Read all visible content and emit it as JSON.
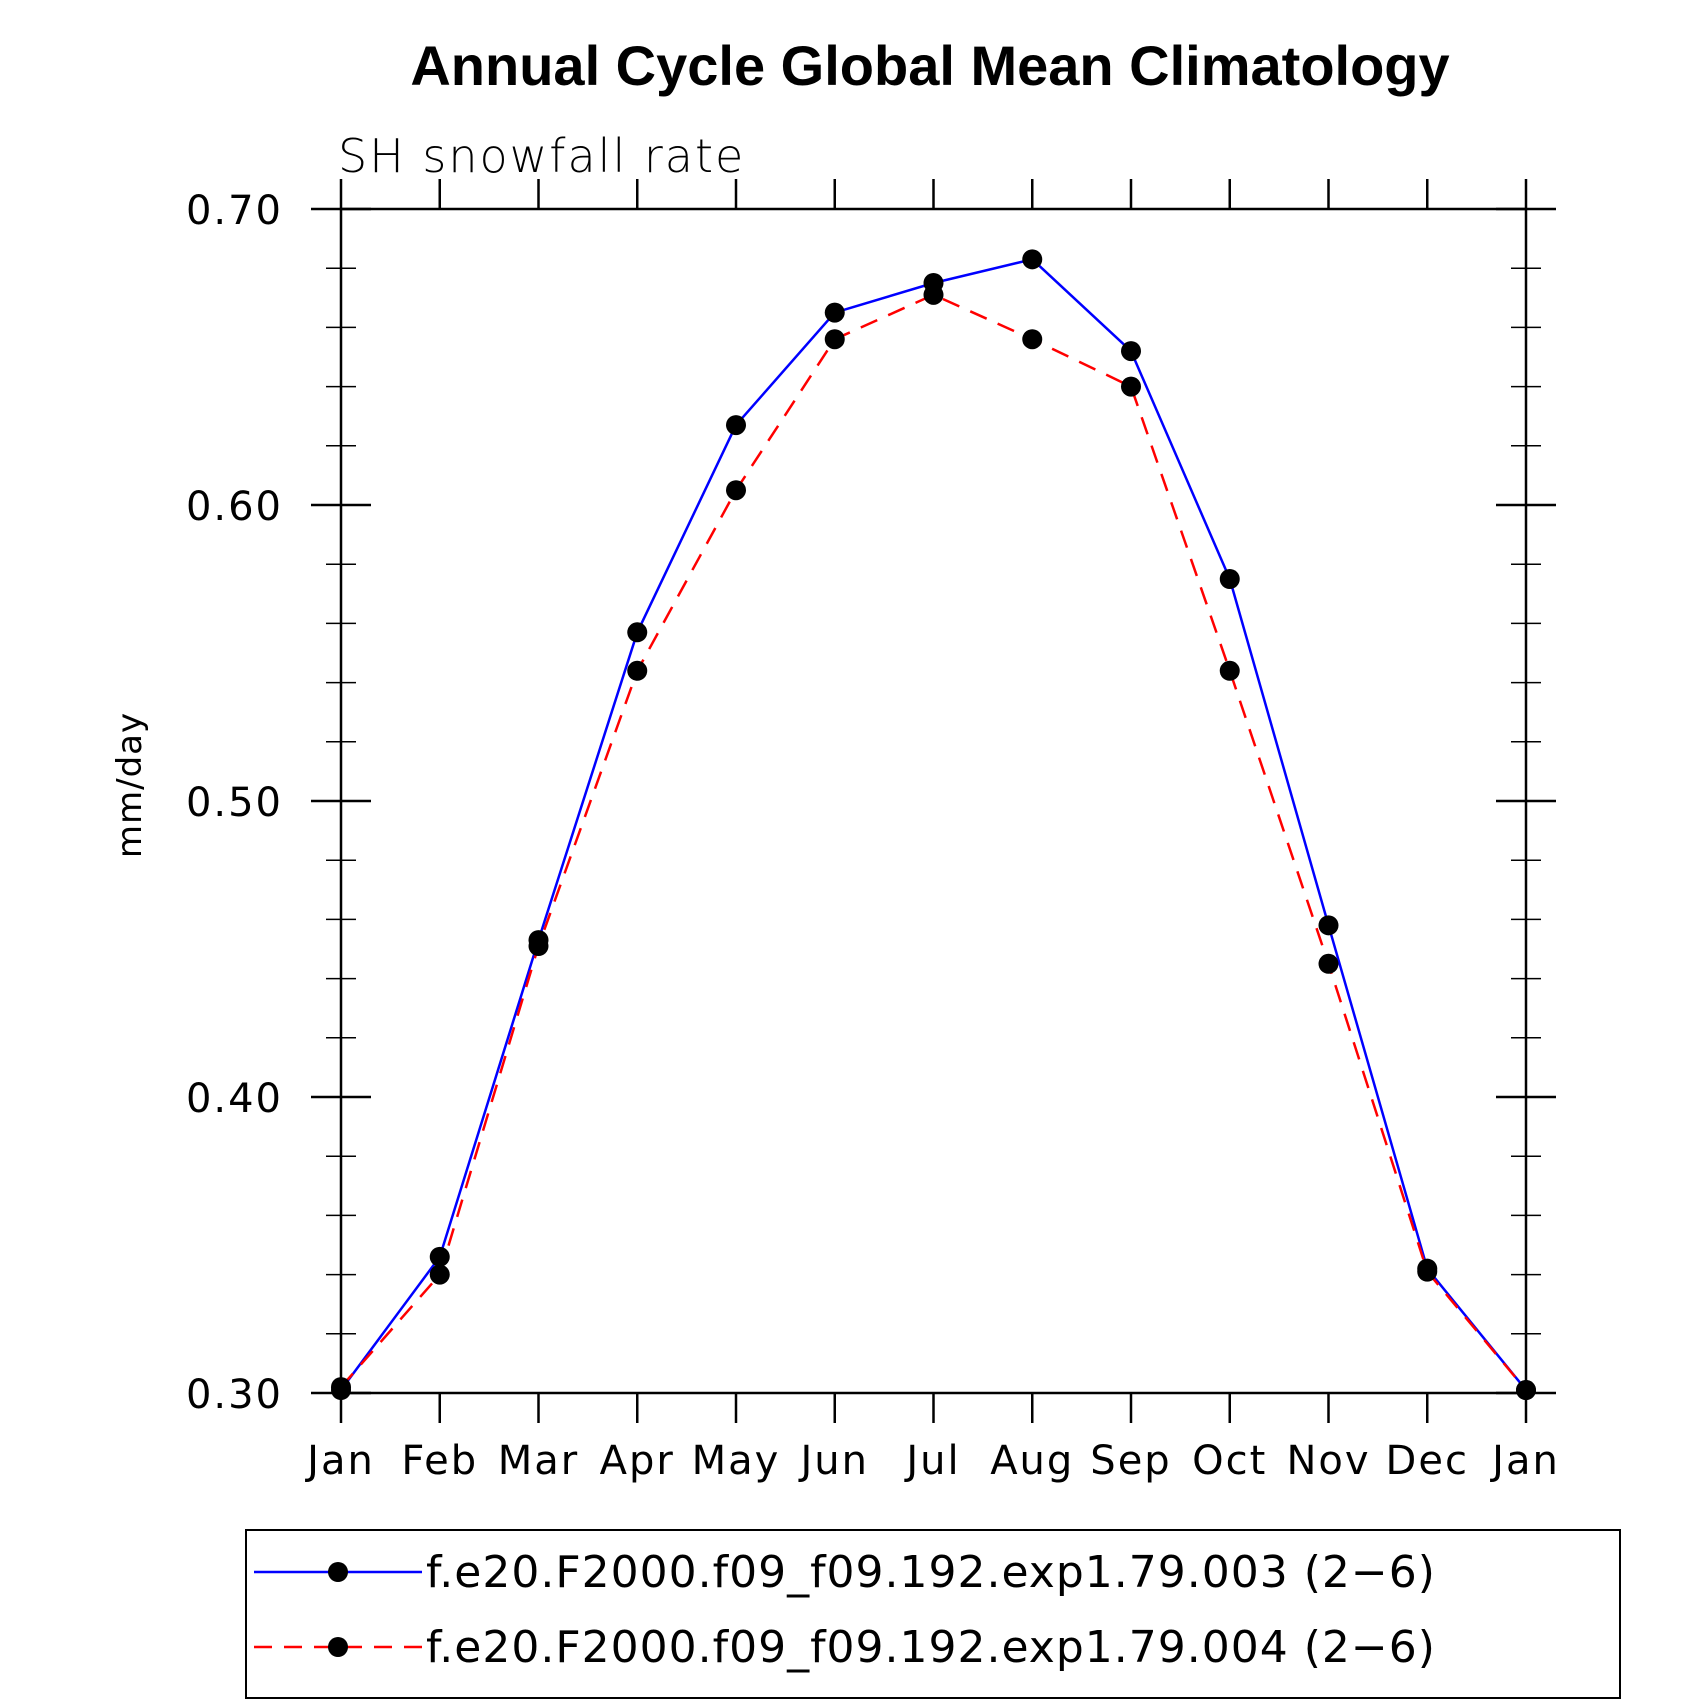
{
  "chart_data": {
    "type": "line",
    "title": "Annual Cycle Global Mean Climatology",
    "subtitle": "SH snowfall rate",
    "xlabel": "",
    "ylabel": "mm/day",
    "categories": [
      "Jan",
      "Feb",
      "Mar",
      "Apr",
      "May",
      "Jun",
      "Jul",
      "Aug",
      "Sep",
      "Oct",
      "Nov",
      "Dec",
      "Jan"
    ],
    "ylim": [
      0.3,
      0.7
    ],
    "yticks": [
      "0.30",
      "0.40",
      "0.50",
      "0.60",
      "0.70"
    ],
    "ytick_values": [
      0.3,
      0.4,
      0.5,
      0.6,
      0.7
    ],
    "grid": false,
    "legend_position": "bottom",
    "series": [
      {
        "name": "f.e20.F2000.f09_f09.192.exp1.79.003 (2−6)",
        "color": "#0000ff",
        "dash": "solid",
        "values": [
          0.301,
          0.346,
          0.453,
          0.557,
          0.627,
          0.665,
          0.675,
          0.683,
          0.652,
          0.575,
          0.458,
          0.342,
          0.301
        ]
      },
      {
        "name": "f.e20.F2000.f09_f09.192.exp1.79.004 (2−6)",
        "color": "#ff0000",
        "dash": "dashed",
        "values": [
          0.302,
          0.34,
          0.451,
          0.544,
          0.605,
          0.656,
          0.671,
          0.656,
          0.64,
          0.544,
          0.445,
          0.341,
          0.301
        ]
      }
    ]
  }
}
